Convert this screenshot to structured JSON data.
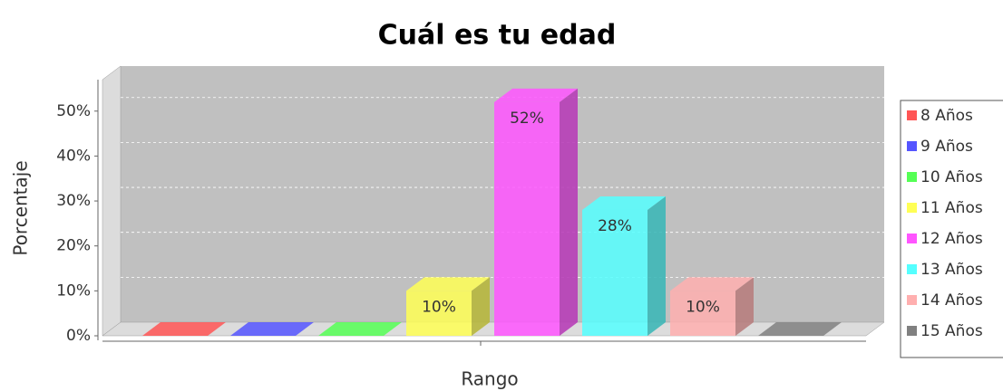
{
  "chart_data": {
    "type": "bar3d",
    "title": "Cuál es tu edad",
    "x_label": "Rango",
    "y_label": "Porcentaje",
    "ylim": [
      0,
      57
    ],
    "yticks": [
      {
        "value": 0,
        "label": "0%"
      },
      {
        "value": 10,
        "label": "10%"
      },
      {
        "value": 20,
        "label": "20%"
      },
      {
        "value": 30,
        "label": "30%"
      },
      {
        "value": 40,
        "label": "40%"
      },
      {
        "value": 50,
        "label": "50%"
      }
    ],
    "grid": true,
    "legend": "right",
    "series": [
      {
        "name": "8 Años",
        "color": "#ff5555",
        "values": [
          0
        ]
      },
      {
        "name": "9 Años",
        "color": "#5555ff",
        "values": [
          0
        ]
      },
      {
        "name": "10 Años",
        "color": "#55ff55",
        "values": [
          0
        ]
      },
      {
        "name": "11 Años",
        "color": "#ffff55",
        "values": [
          10
        ],
        "value_labels": [
          "10%"
        ]
      },
      {
        "name": "12 Años",
        "color": "#ff55ff",
        "values": [
          52
        ],
        "value_labels": [
          "52%"
        ]
      },
      {
        "name": "13 Años",
        "color": "#55ffff",
        "values": [
          28
        ],
        "value_labels": [
          "28%"
        ]
      },
      {
        "name": "14 Años",
        "color": "#ffafaf",
        "values": [
          10
        ],
        "value_labels": [
          "10%"
        ]
      },
      {
        "name": "15 Años",
        "color": "#808080",
        "values": [
          0
        ]
      }
    ]
  }
}
